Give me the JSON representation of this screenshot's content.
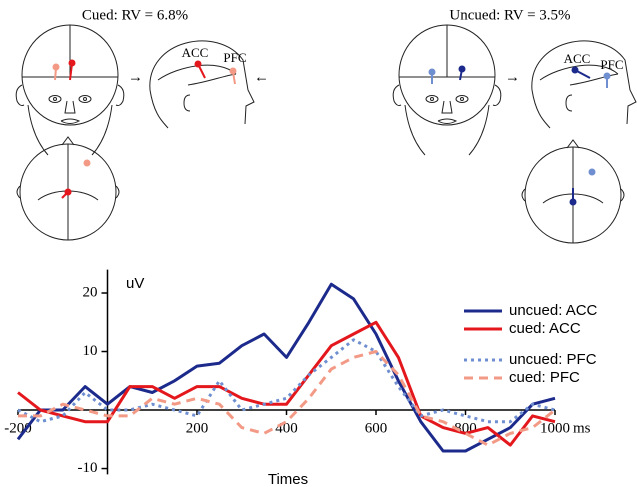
{
  "figure": {
    "panels": [
      {
        "title": "Cued: RV = 6.8%",
        "labels": [
          "ACC",
          "PFC"
        ]
      },
      {
        "title": "Uncued: RV = 3.5%",
        "labels": [
          "ACC",
          "PFC"
        ]
      }
    ]
  },
  "chart_data": {
    "type": "line",
    "x_label": "Times",
    "x_unit": "ms",
    "y_label": "uV",
    "x": [
      -200,
      -150,
      -100,
      -50,
      0,
      50,
      100,
      150,
      200,
      250,
      300,
      350,
      400,
      450,
      500,
      550,
      600,
      650,
      700,
      750,
      800,
      850,
      900,
      950,
      1000
    ],
    "series": [
      {
        "name": "uncued: ACC",
        "color": "#1c2a8c",
        "style": "solid",
        "values": [
          -5,
          0,
          0,
          4,
          1,
          4,
          3,
          5,
          7.5,
          8,
          11,
          13,
          9,
          15,
          21.5,
          19,
          13,
          5,
          -2,
          -7,
          -7,
          -5,
          -3,
          1,
          2
        ]
      },
      {
        "name": "cued: ACC",
        "color": "#e3171c",
        "style": "solid",
        "values": [
          3,
          0,
          -1,
          -2,
          -2,
          4,
          4,
          2,
          4,
          4,
          2,
          1,
          1,
          6,
          11,
          13,
          15,
          9,
          -1,
          -3,
          -4,
          -3,
          -6,
          -1,
          -2
        ]
      },
      {
        "name": "uncued: PFC",
        "color": "#6f8fd0",
        "style": "dotted",
        "values": [
          0,
          -2,
          -1,
          3,
          0,
          0,
          1,
          0,
          -1,
          5,
          0,
          1,
          2,
          6,
          9,
          12,
          10,
          4,
          -1,
          0,
          -1,
          -2,
          -2,
          1,
          0
        ]
      },
      {
        "name": "cued: PFC",
        "color": "#f29a86",
        "style": "dashed",
        "values": [
          -1,
          -1,
          1,
          0,
          -1,
          -1,
          2,
          1,
          2,
          1,
          -3,
          -4,
          -2,
          2,
          7,
          9,
          10,
          6,
          -1,
          -2,
          -4,
          -6,
          -4,
          -3,
          0
        ]
      }
    ],
    "xlim": [
      -200,
      1000
    ],
    "xticks": [
      -200,
      200,
      400,
      600,
      800,
      1000
    ],
    "ylim": [
      -11,
      24
    ],
    "yticks": [
      -10,
      10,
      20
    ]
  }
}
